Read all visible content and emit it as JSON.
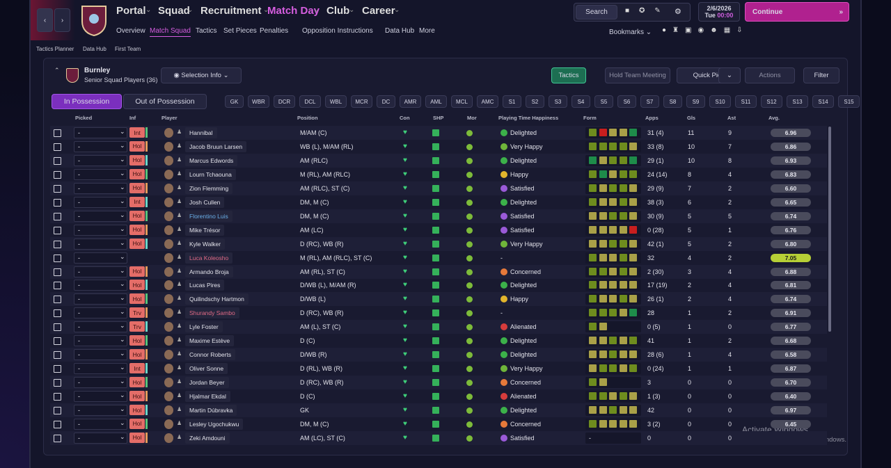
{
  "nav": {
    "items": [
      "Portal",
      "Squad",
      "Recruitment",
      "Match Day",
      "Club",
      "Career"
    ],
    "subnav": [
      "Overview",
      "Match Squad",
      "Tactics",
      "Set Pieces",
      "Penalties",
      "Opposition Instructions",
      "Data Hub",
      "More"
    ],
    "search": "Search",
    "date": "2/6/2026",
    "day": "Tue",
    "time": "00:00",
    "continue": "Continue",
    "bookmarks": "Bookmarks"
  },
  "breadcrumb": [
    "Tactics Planner",
    "Data Hub",
    "First Team"
  ],
  "panel": {
    "club": "Burnley",
    "subtitle": "Senior Squad Players (36)",
    "selection": "Selection Info",
    "buttons": [
      "Tactics",
      "Hold Team Meeting",
      "Quick Pick",
      "Actions",
      "Filter"
    ],
    "tabs": [
      "In Possession",
      "Out of Possession"
    ],
    "positions": [
      "GK",
      "WBR",
      "DCR",
      "DCL",
      "WBL",
      "MCR",
      "DC",
      "AMR",
      "AML",
      "MCL",
      "AMC",
      "S1",
      "S2",
      "S3",
      "S4",
      "S5",
      "S6",
      "S7",
      "S8",
      "S9",
      "S10",
      "S11",
      "S12",
      "S13",
      "S14",
      "S15"
    ]
  },
  "table": {
    "columns": [
      "Picked",
      "Inf",
      "Player",
      "Position",
      "Con",
      "SHP",
      "Mor",
      "Playing Time Happiness",
      "Form",
      "Apps",
      "Gls",
      "Ast",
      "Avg."
    ],
    "rows": [
      {
        "picked": "-",
        "inf": "Int",
        "name": "Hannibal",
        "position": "M/AM (C)",
        "happiness": "Delighted",
        "form": [
          "#6e8c1e",
          "#c81e1e",
          "#a9a048",
          "#a9a048",
          "#1e8c4a"
        ],
        "apps": "31 (4)",
        "gls": 11,
        "ast": 9,
        "avg": "6.96"
      },
      {
        "picked": "-",
        "inf": "Hol",
        "name": "Jacob Bruun Larsen",
        "position": "WB (L), M/AM (RL)",
        "happiness": "Very Happy",
        "form": [
          "#6e8c1e",
          "#6e8c1e",
          "#6e8c1e",
          "#6e8c1e",
          "#a9a048"
        ],
        "apps": "33 (8)",
        "gls": 10,
        "ast": 7,
        "avg": "6.86"
      },
      {
        "picked": "-",
        "inf": "Hol",
        "name": "Marcus Edwords",
        "position": "AM (RLC)",
        "happiness": "Delighted",
        "form": [
          "#1e8c4a",
          "#a9a048",
          "#6e8c1e",
          "#6e8c1e",
          "#1e8c4a"
        ],
        "apps": "29 (1)",
        "gls": 10,
        "ast": 8,
        "avg": "6.93"
      },
      {
        "picked": "-",
        "inf": "Hol",
        "name": "Lourn Tchaouna",
        "position": "M (RL), AM (RLC)",
        "happiness": "Happy",
        "form": [
          "#6e8c1e",
          "#1e8c4a",
          "#a9a048",
          "#6e8c1e",
          "#6e8c1e"
        ],
        "apps": "24 (14)",
        "gls": 8,
        "ast": 4,
        "avg": "6.83"
      },
      {
        "picked": "-",
        "inf": "Hol",
        "name": "Zion Flemming",
        "position": "AM (RLC), ST (C)",
        "happiness": "Satisfied",
        "form": [
          "#6e8c1e",
          "#a9a048",
          "#6e8c1e",
          "#6e8c1e",
          "#a9a048"
        ],
        "apps": "29 (9)",
        "gls": 7,
        "ast": 2,
        "avg": "6.60"
      },
      {
        "picked": "-",
        "inf": "Int",
        "name": "Josh Cullen",
        "position": "DM, M (C)",
        "happiness": "Delighted",
        "form": [
          "#6e8c1e",
          "#a9a048",
          "#a9a048",
          "#6e8c1e",
          "#a9a048"
        ],
        "apps": "38 (3)",
        "gls": 6,
        "ast": 2,
        "avg": "6.65"
      },
      {
        "picked": "-",
        "inf": "Hol",
        "name": "Florentino Luis",
        "position": "DM, M (C)",
        "happiness": "Satisfied",
        "form": [
          "#a9a048",
          "#a9a048",
          "#6e8c1e",
          "#6e8c1e",
          "#a9a048"
        ],
        "apps": "30 (9)",
        "gls": 5,
        "ast": 5,
        "avg": "6.74"
      },
      {
        "picked": "-",
        "inf": "Hol",
        "name": "Mike Trésor",
        "position": "AM (LC)",
        "happiness": "Satisfied",
        "form": [
          "#a9a048",
          "#a9a048",
          "#a9a048",
          "#a9a048",
          "#c81e1e"
        ],
        "apps": "0 (28)",
        "gls": 5,
        "ast": 1,
        "avg": "6.76"
      },
      {
        "picked": "-",
        "inf": "Hol",
        "name": "Kyle Walker",
        "position": "D (RC), WB (R)",
        "happiness": "Very Happy",
        "form": [
          "#a9a048",
          "#a9a048",
          "#6e8c1e",
          "#6e8c1e",
          "#a9a048"
        ],
        "apps": "42 (1)",
        "gls": 5,
        "ast": 2,
        "avg": "6.80"
      },
      {
        "picked": "-",
        "inf": null,
        "name": "Luca Koleosho",
        "position": "M (RL), AM (RLC), ST (C)",
        "happiness": "-",
        "form": [
          "#6e8c1e",
          "#a9a048",
          "#a9a048",
          "#6e8c1e",
          "#a9a048"
        ],
        "apps": "32",
        "gls": 4,
        "ast": 2,
        "avg": "7.05"
      },
      {
        "picked": "-",
        "inf": "Hol",
        "name": "Armando Broja",
        "position": "AM (RL), ST (C)",
        "happiness": "Concerned",
        "form": [
          "#6e8c1e",
          "#6e8c1e",
          "#a9a048",
          "#6e8c1e",
          "#a9a048"
        ],
        "apps": "2 (30)",
        "gls": 3,
        "ast": 4,
        "avg": "6.88"
      },
      {
        "picked": "-",
        "inf": "Hol",
        "name": "Lucas Pires",
        "position": "D/WB (L), M/AM (R)",
        "happiness": "Delighted",
        "form": [
          "#6e8c1e",
          "#a9a048",
          "#a9a048",
          "#a9a048",
          "#a9a048"
        ],
        "apps": "17 (19)",
        "gls": 2,
        "ast": 4,
        "avg": "6.81"
      },
      {
        "picked": "-",
        "inf": "Hol",
        "name": "Quilindschy Hartmon",
        "position": "D/WB (L)",
        "happiness": "Happy",
        "form": [
          "#6e8c1e",
          "#a9a048",
          "#a9a048",
          "#6e8c1e",
          "#a9a048"
        ],
        "apps": "26 (1)",
        "gls": 2,
        "ast": 4,
        "avg": "6.74"
      },
      {
        "picked": "-",
        "inf": "Trv",
        "name": "Shurandy Sambo",
        "position": "D (RC), WB (R)",
        "happiness": "-",
        "form": [
          "#6e8c1e",
          "#6e8c1e",
          "#6e8c1e",
          "#a9a048",
          "#1e8c4a"
        ],
        "apps": "28",
        "gls": 1,
        "ast": 2,
        "avg": "6.91"
      },
      {
        "picked": "-",
        "inf": "Trv",
        "name": "Lyle Foster",
        "position": "AM (L), ST (C)",
        "happiness": "Alienated",
        "form": [
          "#6e8c1e",
          "#a9a048"
        ],
        "apps": "0 (5)",
        "gls": 1,
        "ast": 0,
        "avg": "6.77"
      },
      {
        "picked": "-",
        "inf": "Hol",
        "name": "Maxime Estève",
        "position": "D (C)",
        "happiness": "Delighted",
        "form": [
          "#a9a048",
          "#a9a048",
          "#6e8c1e",
          "#a9a048",
          "#6e8c1e"
        ],
        "apps": "41",
        "gls": 1,
        "ast": 2,
        "avg": "6.68"
      },
      {
        "picked": "-",
        "inf": "Hol",
        "name": "Connor Roberts",
        "position": "D/WB (R)",
        "happiness": "Delighted",
        "form": [
          "#a9a048",
          "#a9a048",
          "#6e8c1e",
          "#a9a048",
          "#a9a048"
        ],
        "apps": "28 (6)",
        "gls": 1,
        "ast": 4,
        "avg": "6.58"
      },
      {
        "picked": "-",
        "inf": "Int",
        "name": "Oliver Sonne",
        "position": "D (RL), WB (R)",
        "happiness": "Very Happy",
        "form": [
          "#a9a048",
          "#6e8c1e",
          "#6e8c1e",
          "#a9a048",
          "#6e8c1e"
        ],
        "apps": "0 (24)",
        "gls": 1,
        "ast": 1,
        "avg": "6.87"
      },
      {
        "picked": "-",
        "inf": "Hol",
        "name": "Jordan Beyer",
        "position": "D (RC), WB (R)",
        "happiness": "Concerned",
        "form": [
          "#6e8c1e",
          "#a9a048"
        ],
        "apps": "3",
        "gls": 0,
        "ast": 0,
        "avg": "6.70"
      },
      {
        "picked": "-",
        "inf": "Hol",
        "name": "Hjalmar Ekdal",
        "position": "D (C)",
        "happiness": "Alienated",
        "form": [
          "#6e8c1e",
          "#6e8c1e",
          "#a9a048",
          "#6e8c1e",
          "#a9a048"
        ],
        "apps": "1 (3)",
        "gls": 0,
        "ast": 0,
        "avg": "6.40"
      },
      {
        "picked": "-",
        "inf": "Hol",
        "name": "Martin Dúbravka",
        "position": "GK",
        "happiness": "Delighted",
        "form": [
          "#a9a048",
          "#a9a048",
          "#6e8c1e",
          "#a9a048",
          "#a9a048"
        ],
        "apps": "42",
        "gls": 0,
        "ast": 0,
        "avg": "6.97"
      },
      {
        "picked": "-",
        "inf": "Hol",
        "name": "Lesley Ugochukwu",
        "position": "DM, M (C)",
        "happiness": "Concerned",
        "form": [
          "#6e8c1e",
          "#a9a048",
          "#a9a048",
          "#a9a048",
          "#a9a048"
        ],
        "apps": "3 (2)",
        "gls": 0,
        "ast": 0,
        "avg": "6.45"
      },
      {
        "picked": "-",
        "inf": "Hol",
        "name": "Zeki Amdouni",
        "position": "AM (LC), ST (C)",
        "happiness": "Satisfied",
        "form": "-",
        "apps": "0",
        "gls": 0,
        "ast": 0,
        "avg": null
      }
    ]
  },
  "watermark": {
    "title": "Activate Windows",
    "text": "Go to Settings to activate Windows."
  }
}
